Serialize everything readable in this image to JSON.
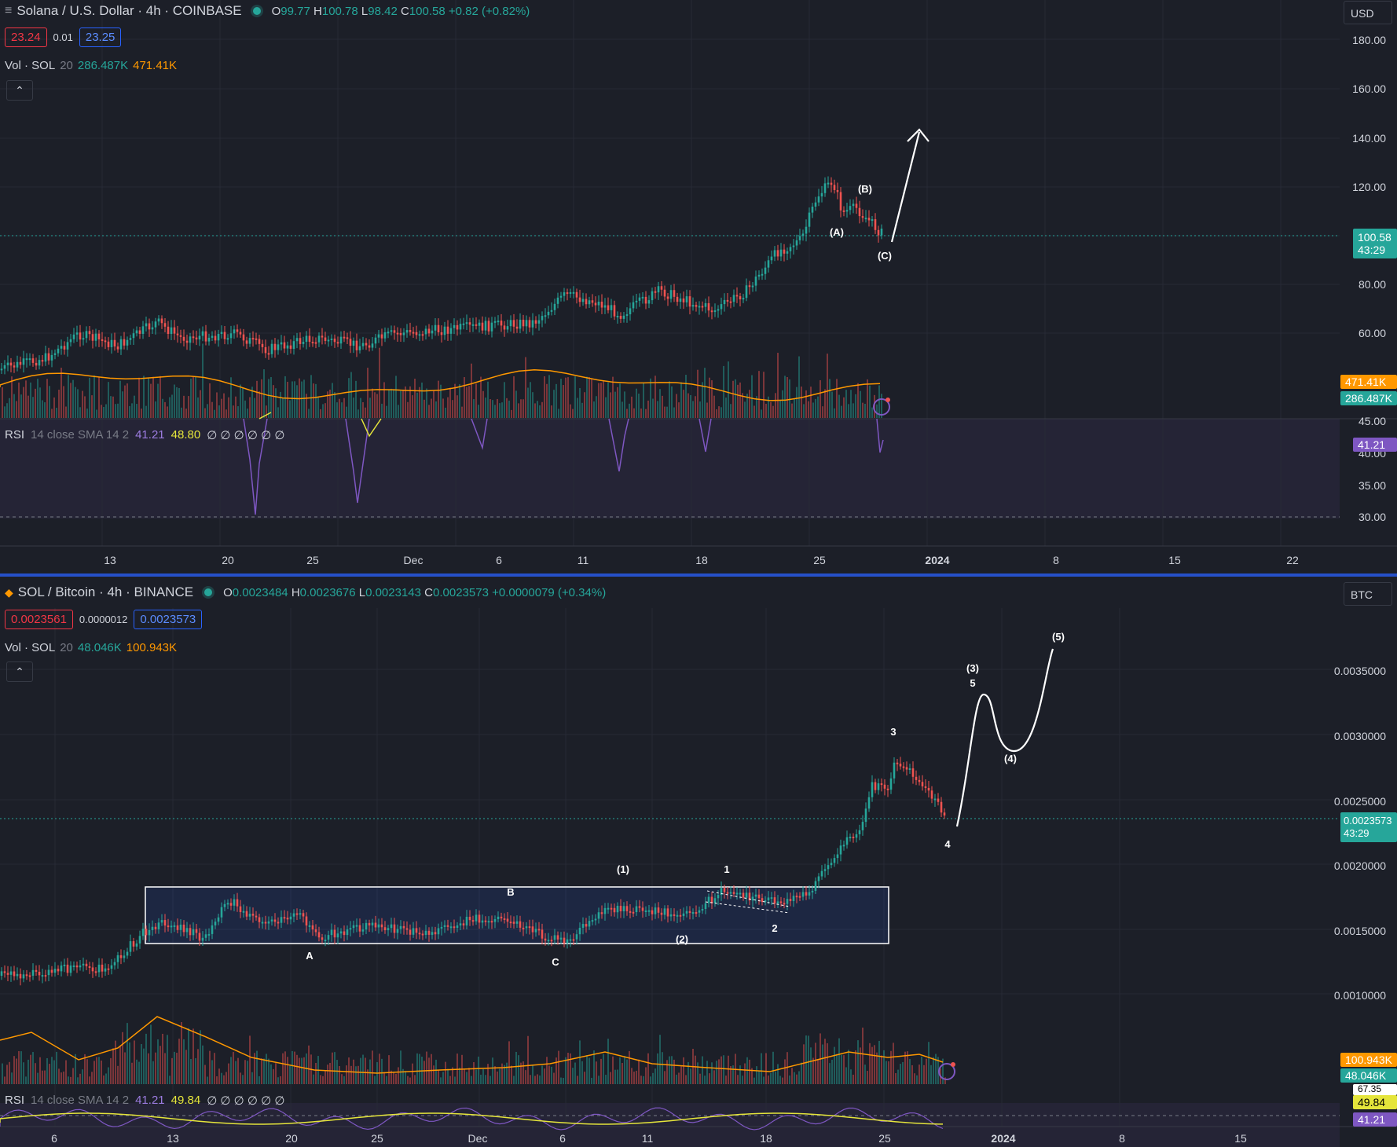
{
  "pane1": {
    "symbol": "Solana / U.S. Dollar · 4h · COINBASE",
    "ohlc": {
      "o_label": "O",
      "o": "99.77",
      "h_label": "H",
      "h": "100.78",
      "l_label": "L",
      "l": "98.42",
      "c_label": "C",
      "c": "100.58",
      "chg": "+0.82 (+0.82%)"
    },
    "bid": "23.24",
    "spread": "0.01",
    "ask": "23.25",
    "vol": {
      "label": "Vol · SOL",
      "len": "20",
      "v1": "286.487K",
      "v2": "471.41K"
    },
    "rsi": {
      "label": "RSI",
      "params": "14 close SMA 14 2",
      "v1": "41.21",
      "v2": "48.80",
      "nulls": "∅ ∅ ∅ ∅ ∅ ∅"
    },
    "currency": "USD",
    "price_axis": [
      "180.00",
      "160.00",
      "140.00",
      "120.00",
      "80.00",
      "60.00"
    ],
    "rsi_axis": [
      "45.00",
      "40.00",
      "35.00",
      "30.00"
    ],
    "last_price": "100.58",
    "countdown": "43:29",
    "vol_tags": [
      "471.41K",
      "286.487K"
    ],
    "rsi_tag": "41.21",
    "x_axis": [
      "13",
      "20",
      "25",
      "Dec",
      "6",
      "11",
      "18",
      "25",
      "2024",
      "8",
      "15",
      "22"
    ],
    "waves": [
      "(A)",
      "(B)",
      "(C)"
    ]
  },
  "pane2": {
    "symbol": "SOL / Bitcoin · 4h · BINANCE",
    "ohlc": {
      "o_label": "O",
      "o": "0.0023484",
      "h_label": "H",
      "h": "0.0023676",
      "l_label": "L",
      "l": "0.0023143",
      "c_label": "C",
      "c": "0.0023573",
      "chg": "+0.0000079 (+0.34%)"
    },
    "bid": "0.0023561",
    "spread": "0.0000012",
    "ask": "0.0023573",
    "vol": {
      "label": "Vol · SOL",
      "len": "20",
      "v1": "48.046K",
      "v2": "100.943K"
    },
    "rsi": {
      "label": "RSI",
      "params": "14 close SMA 14 2",
      "v1": "41.21",
      "v2": "49.84",
      "nulls": "∅ ∅ ∅ ∅ ∅ ∅"
    },
    "currency": "BTC",
    "price_axis": [
      "0.0035000",
      "0.0030000",
      "0.0025000",
      "0.0020000",
      "0.0015000",
      "0.0010000"
    ],
    "last_price": "0.0023573",
    "countdown": "43:29",
    "vol_tags": [
      "100.943K",
      "48.046K"
    ],
    "rsi_tags": [
      "67.35",
      "49.84",
      "41.21"
    ],
    "x_axis": [
      "6",
      "13",
      "20",
      "25",
      "Dec",
      "6",
      "11",
      "18",
      "25",
      "2024",
      "8",
      "15"
    ],
    "waves": [
      "A",
      "B",
      "C",
      "(1)",
      "(2)",
      "1",
      "2",
      "3",
      "4",
      "(3)",
      "5",
      "(4)",
      "(5)"
    ]
  },
  "colors": {
    "up": "#26a69a",
    "down": "#ef5350",
    "accent": "#2962ff",
    "ma": "#ff9800",
    "rsi": "#7e57c2",
    "rsi_ma": "#e5e53b"
  }
}
